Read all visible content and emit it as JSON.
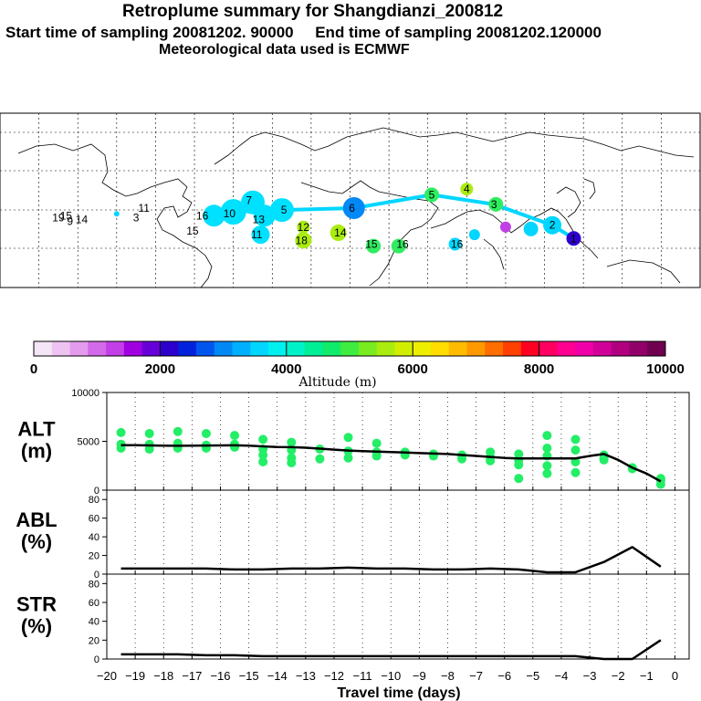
{
  "header": {
    "title": "Retroplume summary for Shangdianzi_200812",
    "sampling": "Start time of sampling 20081202. 90000     End time of sampling 20081202.120000",
    "met": "Meteorological data used is ECMWF"
  },
  "colorbar": {
    "label": "Altitude (m)",
    "ticks": [
      "0",
      "2000",
      "4000",
      "6000",
      "8000",
      "10000"
    ],
    "min": 0,
    "max": 10000,
    "colors": [
      "#f5e6f7",
      "#eec3f2",
      "#e39bee",
      "#d36ae9",
      "#c23ee6",
      "#a000e0",
      "#6600d8",
      "#2d00cc",
      "#0022dd",
      "#0055ee",
      "#0088f5",
      "#00b0ff",
      "#00d6ff",
      "#00f0f0",
      "#00f2c8",
      "#00ee96",
      "#10ec6a",
      "#40ec40",
      "#78ec20",
      "#aaec10",
      "#d2ee00",
      "#eeee00",
      "#ffdd00",
      "#ffbb00",
      "#ff9900",
      "#ff6e00",
      "#ff4000",
      "#ff0020",
      "#ff0060",
      "#ff0090",
      "#f000a8",
      "#d00098",
      "#b00080",
      "#900068",
      "#700050"
    ]
  },
  "map": {
    "labels": [
      {
        "t": "19",
        "lon": -150,
        "lat": 35,
        "c": "#30ec60"
      },
      {
        "t": "15",
        "lon": -146,
        "lat": 36,
        "c": "#30ec60"
      },
      {
        "t": "9",
        "lon": -144,
        "lat": 33,
        "c": "#30ec60"
      },
      {
        "t": "14",
        "lon": -138,
        "lat": 34,
        "c": "#30ec60"
      },
      {
        "t": "11",
        "lon": -106,
        "lat": 40,
        "c": "#aaec10"
      },
      {
        "t": "3",
        "lon": -110,
        "lat": 35,
        "c": "#30ec60"
      },
      {
        "t": "15",
        "lon": -81,
        "lat": 28,
        "c": "#30ec60"
      },
      {
        "t": "16",
        "lon": -76,
        "lat": 36,
        "c": "#00d6ff"
      },
      {
        "t": "10",
        "lon": -62,
        "lat": 37,
        "c": "#00e0ff"
      },
      {
        "t": "7",
        "lon": -52,
        "lat": 44,
        "c": "#00e0ff"
      },
      {
        "t": "13",
        "lon": -47,
        "lat": 34,
        "c": "#00e0ff"
      },
      {
        "t": "5",
        "lon": -34,
        "lat": 39,
        "c": "#00e0ff"
      },
      {
        "t": "11",
        "lon": -48,
        "lat": 26,
        "c": "#00e0ff"
      },
      {
        "t": "12",
        "lon": -24,
        "lat": 30,
        "c": "#aaec10"
      },
      {
        "t": "14",
        "lon": -5,
        "lat": 27,
        "c": "#aaec10"
      },
      {
        "t": "18",
        "lon": -25,
        "lat": 23,
        "c": "#aaec10"
      },
      {
        "t": "6",
        "lon": 1,
        "lat": 40,
        "c": "#0088f5"
      },
      {
        "t": "15",
        "lon": 11,
        "lat": 21,
        "c": "#30ec60"
      },
      {
        "t": "16",
        "lon": 27,
        "lat": 21,
        "c": "#30ec60"
      },
      {
        "t": "16",
        "lon": 55,
        "lat": 21,
        "c": "#00d6ff"
      },
      {
        "t": "5",
        "lon": 42,
        "lat": 47,
        "c": "#30ec60"
      },
      {
        "t": "4",
        "lon": 60,
        "lat": 50,
        "c": "#aaec10"
      },
      {
        "t": "3",
        "lon": 74,
        "lat": 42,
        "c": "#30ec60"
      },
      {
        "t": "2",
        "lon": 104,
        "lat": 31,
        "c": "#00d6ff"
      },
      {
        "t": "1",
        "lon": 115,
        "lat": 24,
        "c": "#2d00cc"
      }
    ],
    "plume": [
      {
        "lon": -120,
        "lat": 37,
        "r": 3,
        "c": "#00d6ff"
      },
      {
        "lon": -70,
        "lat": 36,
        "r": 12,
        "c": "#00e0ff"
      },
      {
        "lon": -60,
        "lat": 38,
        "r": 14,
        "c": "#00e0ff"
      },
      {
        "lon": -50,
        "lat": 43,
        "r": 13,
        "c": "#00e0ff"
      },
      {
        "lon": -44,
        "lat": 36,
        "r": 12,
        "c": "#00e0ff"
      },
      {
        "lon": -35,
        "lat": 39,
        "r": 13,
        "c": "#00e0ff"
      },
      {
        "lon": -46,
        "lat": 26,
        "r": 10,
        "c": "#00e0ff"
      },
      {
        "lon": -24,
        "lat": 30,
        "r": 7,
        "c": "#aaec10"
      },
      {
        "lon": -24,
        "lat": 23,
        "r": 9,
        "c": "#aaec10"
      },
      {
        "lon": -6,
        "lat": 27,
        "r": 9,
        "c": "#aaec10"
      },
      {
        "lon": 2,
        "lat": 40,
        "r": 12,
        "c": "#0088f5"
      },
      {
        "lon": 12,
        "lat": 20,
        "r": 8,
        "c": "#30ec60"
      },
      {
        "lon": 25,
        "lat": 20,
        "r": 8,
        "c": "#30ec60"
      },
      {
        "lon": 42,
        "lat": 47,
        "r": 8,
        "c": "#30ec60"
      },
      {
        "lon": 60,
        "lat": 50,
        "r": 7,
        "c": "#aaec10"
      },
      {
        "lon": 75,
        "lat": 42,
        "r": 8,
        "c": "#30ec60"
      },
      {
        "lon": 93,
        "lat": 29,
        "r": 8,
        "c": "#00d6ff"
      },
      {
        "lon": 104,
        "lat": 31,
        "r": 10,
        "c": "#00d6ff"
      },
      {
        "lon": 115,
        "lat": 24,
        "r": 8,
        "c": "#2d00cc"
      },
      {
        "lon": 80,
        "lat": 30,
        "r": 6,
        "c": "#c23ee6"
      },
      {
        "lon": 54,
        "lat": 21,
        "r": 7,
        "c": "#00d6ff"
      },
      {
        "lon": 64,
        "lat": 26,
        "r": 6,
        "c": "#00d6ff"
      }
    ]
  },
  "chart_data": [
    {
      "type": "line",
      "panel": "ALT",
      "ylabel": "ALT\n(m)",
      "ylabel_lines": [
        "ALT",
        "(m)"
      ],
      "ylim": [
        0,
        10000
      ],
      "yticks": [
        "10000",
        "5000",
        "0"
      ],
      "ytick_values": [
        10000,
        5000,
        0
      ],
      "x": [
        -19.5,
        -19,
        -18.5,
        -18,
        -17.5,
        -17,
        -16.5,
        -16,
        -15.5,
        -15,
        -14.5,
        -14,
        -13.5,
        -13,
        -12.5,
        -12,
        -11.5,
        -11,
        -10.5,
        -10,
        -9.5,
        -9,
        -8.5,
        -8,
        -7.5,
        -7,
        -6.5,
        -6,
        -5.5,
        -5,
        -4.5,
        -4,
        -3.5,
        -3,
        -2.5,
        -2,
        -1.5,
        -1,
        -0.5
      ],
      "y": [
        4600,
        4600,
        4580,
        4560,
        4550,
        4560,
        4570,
        4580,
        4590,
        4560,
        4480,
        4420,
        4400,
        4350,
        4250,
        4150,
        4050,
        4000,
        3950,
        3900,
        3850,
        3800,
        3750,
        3700,
        3600,
        3500,
        3400,
        3300,
        3250,
        3250,
        3250,
        3250,
        3250,
        3500,
        3700,
        3100,
        2300,
        1700,
        900
      ],
      "scatter": [
        {
          "x": -19.5,
          "y": 4300
        },
        {
          "x": -19.5,
          "y": 4700
        },
        {
          "x": -19.5,
          "y": 5900
        },
        {
          "x": -18.5,
          "y": 4200
        },
        {
          "x": -18.5,
          "y": 4700
        },
        {
          "x": -18.5,
          "y": 5800
        },
        {
          "x": -17.5,
          "y": 4300
        },
        {
          "x": -17.5,
          "y": 4800
        },
        {
          "x": -17.5,
          "y": 6000
        },
        {
          "x": -16.5,
          "y": 4300
        },
        {
          "x": -16.5,
          "y": 4600
        },
        {
          "x": -16.5,
          "y": 5800
        },
        {
          "x": -15.5,
          "y": 4400
        },
        {
          "x": -15.5,
          "y": 4700
        },
        {
          "x": -15.5,
          "y": 5600
        },
        {
          "x": -14.5,
          "y": 3600
        },
        {
          "x": -14.5,
          "y": 4200
        },
        {
          "x": -14.5,
          "y": 5200
        },
        {
          "x": -14.5,
          "y": 2900
        },
        {
          "x": -13.5,
          "y": 3300
        },
        {
          "x": -13.5,
          "y": 4100
        },
        {
          "x": -13.5,
          "y": 4900
        },
        {
          "x": -13.5,
          "y": 2800
        },
        {
          "x": -12.5,
          "y": 3200
        },
        {
          "x": -12.5,
          "y": 4200
        },
        {
          "x": -11.5,
          "y": 3300
        },
        {
          "x": -11.5,
          "y": 4000
        },
        {
          "x": -11.5,
          "y": 5400
        },
        {
          "x": -10.5,
          "y": 3500
        },
        {
          "x": -10.5,
          "y": 3900
        },
        {
          "x": -10.5,
          "y": 4800
        },
        {
          "x": -9.5,
          "y": 3600
        },
        {
          "x": -9.5,
          "y": 3900
        },
        {
          "x": -8.5,
          "y": 3500
        },
        {
          "x": -8.5,
          "y": 3700
        },
        {
          "x": -7.5,
          "y": 3200
        },
        {
          "x": -7.5,
          "y": 3600
        },
        {
          "x": -6.5,
          "y": 3000
        },
        {
          "x": -6.5,
          "y": 3400
        },
        {
          "x": -6.5,
          "y": 3900
        },
        {
          "x": -5.5,
          "y": 2600
        },
        {
          "x": -5.5,
          "y": 3100
        },
        {
          "x": -5.5,
          "y": 3700
        },
        {
          "x": -5.5,
          "y": 1200
        },
        {
          "x": -4.5,
          "y": 1700
        },
        {
          "x": -4.5,
          "y": 2500
        },
        {
          "x": -4.5,
          "y": 3500
        },
        {
          "x": -4.5,
          "y": 4300
        },
        {
          "x": -4.5,
          "y": 5600
        },
        {
          "x": -3.5,
          "y": 1800
        },
        {
          "x": -3.5,
          "y": 2900
        },
        {
          "x": -3.5,
          "y": 4100
        },
        {
          "x": -3.5,
          "y": 5200
        },
        {
          "x": -2.5,
          "y": 3100
        },
        {
          "x": -2.5,
          "y": 3600
        },
        {
          "x": -2.5,
          "y": 3300
        },
        {
          "x": -1.5,
          "y": 2200
        },
        {
          "x": -1.5,
          "y": 2300
        },
        {
          "x": -0.5,
          "y": 600
        },
        {
          "x": -0.5,
          "y": 1000
        },
        {
          "x": -0.5,
          "y": 1200
        }
      ]
    },
    {
      "type": "line",
      "panel": "ABL",
      "ylabel_lines": [
        "ABL",
        "(%)"
      ],
      "ylim": [
        0,
        90
      ],
      "yticks": [
        "80",
        "60",
        "40",
        "20",
        "0"
      ],
      "ytick_values": [
        80,
        60,
        40,
        20,
        0
      ],
      "x": [
        -19.5,
        -18.5,
        -17.5,
        -16.5,
        -15.5,
        -14.5,
        -13.5,
        -12.5,
        -11.5,
        -10.5,
        -9.5,
        -8.5,
        -7.5,
        -6.5,
        -5.5,
        -4.5,
        -3.5,
        -2.5,
        -1.5,
        -0.5
      ],
      "y": [
        6,
        6,
        6,
        6,
        5,
        5,
        6,
        6,
        7,
        6,
        6,
        5,
        5,
        6,
        5,
        2,
        2,
        13,
        29,
        8
      ]
    },
    {
      "type": "line",
      "panel": "STR",
      "ylabel_lines": [
        "STR",
        "(%)"
      ],
      "ylim": [
        0,
        90
      ],
      "yticks": [
        "80",
        "60",
        "40",
        "20",
        "0"
      ],
      "ytick_values": [
        80,
        60,
        40,
        20,
        0
      ],
      "x": [
        -19.5,
        -18.5,
        -17.5,
        -16.5,
        -15.5,
        -14.5,
        -13.5,
        -12.5,
        -11.5,
        -10.5,
        -9.5,
        -8.5,
        -7.5,
        -6.5,
        -5.5,
        -4.5,
        -3.5,
        -2.5,
        -1.5,
        -0.5
      ],
      "y": [
        5,
        5,
        5,
        4,
        4,
        3,
        3,
        3,
        3,
        3,
        3,
        3,
        3,
        3,
        3,
        3,
        3,
        0,
        0,
        20
      ]
    }
  ],
  "xaxis": {
    "label": "Travel time (days)",
    "ticks": [
      "−20",
      "−19",
      "−18",
      "−17",
      "−16",
      "−15",
      "−14",
      "−13",
      "−12",
      "−11",
      "−10",
      "−9",
      "−8",
      "−7",
      "−6",
      "−5",
      "−4",
      "−3",
      "−2",
      "−1",
      "0"
    ],
    "tick_values": [
      -20,
      -19,
      -18,
      -17,
      -16,
      -15,
      -14,
      -13,
      -12,
      -11,
      -10,
      -9,
      -8,
      -7,
      -6,
      -5,
      -4,
      -3,
      -2,
      -1,
      0
    ]
  }
}
